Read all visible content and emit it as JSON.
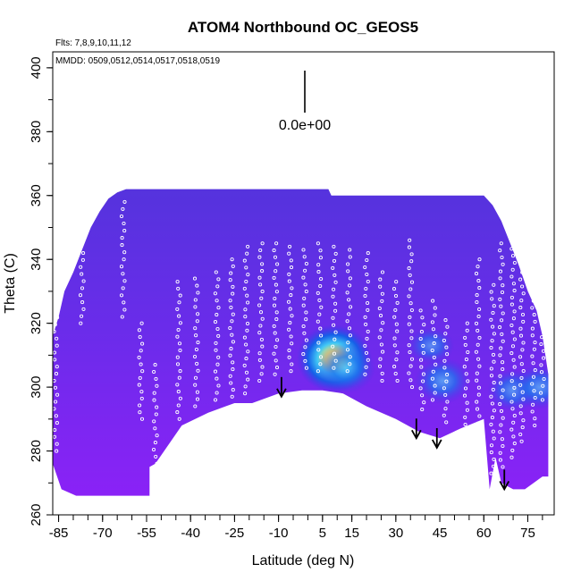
{
  "chart_data": {
    "type": "heatmap",
    "title": "ATOM4 Northbound OC_GEOS5",
    "flights_note": "Flts: 7,8,9,10,11,12",
    "dates_note": "MMDD: 0509,0512,0514,0517,0518,0519",
    "xlabel": "Latitude (deg N)",
    "ylabel": "Theta (C)",
    "xlim": [
      -87,
      84
    ],
    "ylim": [
      260,
      405
    ],
    "x_ticks": [
      -85,
      -70,
      -55,
      -40,
      -25,
      -10,
      5,
      15,
      30,
      45,
      60,
      75
    ],
    "x_tick_labels": [
      "-85",
      "-70",
      "-55",
      "-40",
      "-25",
      "-10",
      "5",
      "15",
      "30",
      "45",
      "60",
      "75"
    ],
    "y_ticks": [
      260,
      280,
      300,
      320,
      340,
      360,
      380,
      400
    ],
    "y_tick_labels": [
      "260",
      "280",
      "300",
      "320",
      "340",
      "360",
      "380",
      "400"
    ],
    "scale_bar_label": "0.0e+00",
    "colors": {
      "background_field": "#5a2ce0",
      "low": "#7a22f0",
      "high": "#ffff66",
      "mid": "#1e8cf0",
      "points": "#ffffff",
      "arrows": "#000000"
    },
    "field_top_theta": [
      [
        -87,
        316
      ],
      [
        -85,
        322
      ],
      [
        -83,
        330
      ],
      [
        -80,
        336
      ],
      [
        -77,
        343
      ],
      [
        -74,
        350
      ],
      [
        -71,
        355
      ],
      [
        -68,
        359
      ],
      [
        -65,
        361
      ],
      [
        -62,
        362
      ],
      [
        -10,
        362
      ],
      [
        7,
        362
      ],
      [
        8,
        360
      ],
      [
        20,
        360
      ],
      [
        30,
        360
      ],
      [
        45,
        360
      ],
      [
        60,
        360
      ],
      [
        63,
        357
      ],
      [
        66,
        352
      ],
      [
        69,
        345
      ],
      [
        72,
        338
      ],
      [
        75,
        330
      ],
      [
        78,
        324
      ],
      [
        80,
        316
      ],
      [
        82,
        304
      ]
    ],
    "field_bottom_theta": [
      [
        -87,
        276
      ],
      [
        -84,
        268
      ],
      [
        -79,
        266
      ],
      [
        -54,
        266
      ],
      [
        -54,
        275
      ],
      [
        -52,
        276
      ],
      [
        -43,
        288
      ],
      [
        -34,
        292
      ],
      [
        -25,
        295
      ],
      [
        -19,
        295
      ],
      [
        -10,
        298
      ],
      [
        -2,
        299
      ],
      [
        5,
        299
      ],
      [
        12,
        298
      ],
      [
        20,
        294
      ],
      [
        30,
        290
      ],
      [
        38,
        286
      ],
      [
        45,
        284
      ],
      [
        52,
        287
      ],
      [
        60,
        290
      ],
      [
        62,
        268
      ],
      [
        64,
        278
      ],
      [
        66,
        270
      ],
      [
        70,
        268
      ],
      [
        74,
        268
      ],
      [
        80,
        272
      ],
      [
        82,
        272
      ]
    ],
    "hotspots": [
      {
        "lat": 9,
        "theta": 309,
        "value": 1.0
      },
      {
        "lat": 13,
        "theta": 306,
        "value": 0.55
      },
      {
        "lat": 46,
        "theta": 302,
        "value": 0.45
      },
      {
        "lat": 70,
        "theta": 299,
        "value": 0.35
      },
      {
        "lat": 79,
        "theta": 300,
        "value": 0.4
      },
      {
        "lat": 42,
        "theta": 313,
        "value": 0.2
      }
    ],
    "arrows": [
      {
        "lat": -9,
        "theta": 297
      },
      {
        "lat": 37,
        "theta": 284
      },
      {
        "lat": 44,
        "theta": 281
      },
      {
        "lat": 67,
        "theta": 268
      }
    ],
    "flight_tracks": [
      {
        "lat": -86,
        "theta": [
          324,
          280
        ]
      },
      {
        "lat": -77,
        "theta": [
          342,
          320
        ]
      },
      {
        "lat": -63,
        "theta": [
          358,
          322
        ]
      },
      {
        "lat": -57,
        "theta": [
          320,
          290
        ]
      },
      {
        "lat": -52,
        "theta": [
          307,
          276
        ]
      },
      {
        "lat": -44,
        "theta": [
          333,
          290
        ]
      },
      {
        "lat": -38,
        "theta": [
          334,
          294
        ]
      },
      {
        "lat": -31,
        "theta": [
          336,
          296
        ]
      },
      {
        "lat": -26,
        "theta": [
          340,
          297
        ]
      },
      {
        "lat": -21,
        "theta": [
          344,
          298
        ]
      },
      {
        "lat": -16,
        "theta": [
          345,
          302
        ]
      },
      {
        "lat": -11,
        "theta": [
          345,
          304
        ]
      },
      {
        "lat": -6,
        "theta": [
          344,
          305
        ]
      },
      {
        "lat": -1,
        "theta": [
          343,
          306
        ]
      },
      {
        "lat": 4,
        "theta": [
          345,
          305
        ]
      },
      {
        "lat": 9,
        "theta": [
          344,
          306
        ]
      },
      {
        "lat": 14,
        "theta": [
          343,
          305
        ]
      },
      {
        "lat": 20,
        "theta": [
          342,
          304
        ]
      },
      {
        "lat": 25,
        "theta": [
          336,
          302
        ]
      },
      {
        "lat": 30,
        "theta": [
          333,
          302
        ]
      },
      {
        "lat": 35,
        "theta": [
          346,
          300
        ]
      },
      {
        "lat": 39,
        "theta": [
          324,
          293
        ]
      },
      {
        "lat": 43,
        "theta": [
          327,
          296
        ]
      },
      {
        "lat": 47,
        "theta": [
          321,
          289
        ]
      },
      {
        "lat": 54,
        "theta": [
          320,
          286
        ]
      },
      {
        "lat": 58,
        "theta": [
          340,
          282
        ]
      },
      {
        "lat": 63,
        "theta": [
          332,
          273
        ]
      },
      {
        "lat": 66,
        "theta": [
          345,
          275
        ]
      },
      {
        "lat": 70,
        "theta": [
          352,
          278
        ]
      },
      {
        "lat": 73,
        "theta": [
          358,
          283
        ]
      },
      {
        "lat": 77,
        "theta": [
          340,
          288
        ]
      },
      {
        "lat": 80,
        "theta": [
          320,
          296
        ]
      }
    ]
  }
}
